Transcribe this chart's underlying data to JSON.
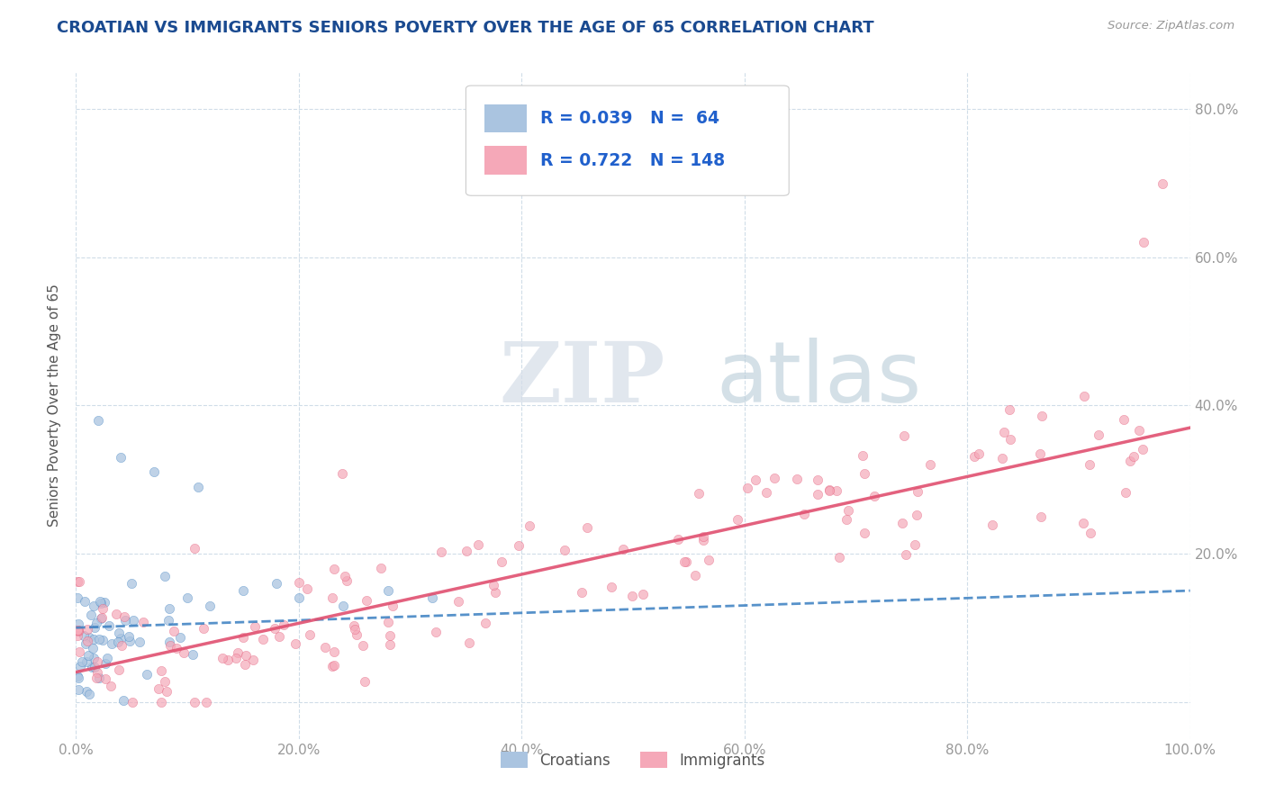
{
  "title": "CROATIAN VS IMMIGRANTS SENIORS POVERTY OVER THE AGE OF 65 CORRELATION CHART",
  "source": "Source: ZipAtlas.com",
  "ylabel": "Seniors Poverty Over the Age of 65",
  "croatian_R": 0.039,
  "croatian_N": 64,
  "immigrant_R": 0.722,
  "immigrant_N": 148,
  "xlim": [
    0.0,
    1.0
  ],
  "ylim": [
    -0.05,
    0.85
  ],
  "x_ticks": [
    0.0,
    0.2,
    0.4,
    0.6,
    0.8,
    1.0
  ],
  "x_tick_labels": [
    "0.0%",
    "20.0%",
    "40.0%",
    "60.0%",
    "80.0%",
    "100.0%"
  ],
  "y_ticks": [
    0.0,
    0.2,
    0.4,
    0.6,
    0.8
  ],
  "right_y_ticks": [
    0.2,
    0.4,
    0.6,
    0.8
  ],
  "right_y_tick_labels": [
    "20.0%",
    "40.0%",
    "60.0%",
    "80.0%"
  ],
  "croatian_color": "#aac4e0",
  "immigrant_color": "#f5a8b8",
  "croatian_line_color": "#3a7fc1",
  "immigrant_line_color": "#e05070",
  "grid_color": "#d0dde8",
  "background_color": "#ffffff",
  "title_color": "#1a4a90",
  "title_fontsize": 13.0,
  "axis_label_color": "#555555",
  "tick_color": "#999999",
  "watermark_zip_color": "#d0d8e8",
  "watermark_atlas_color": "#b8cce0"
}
